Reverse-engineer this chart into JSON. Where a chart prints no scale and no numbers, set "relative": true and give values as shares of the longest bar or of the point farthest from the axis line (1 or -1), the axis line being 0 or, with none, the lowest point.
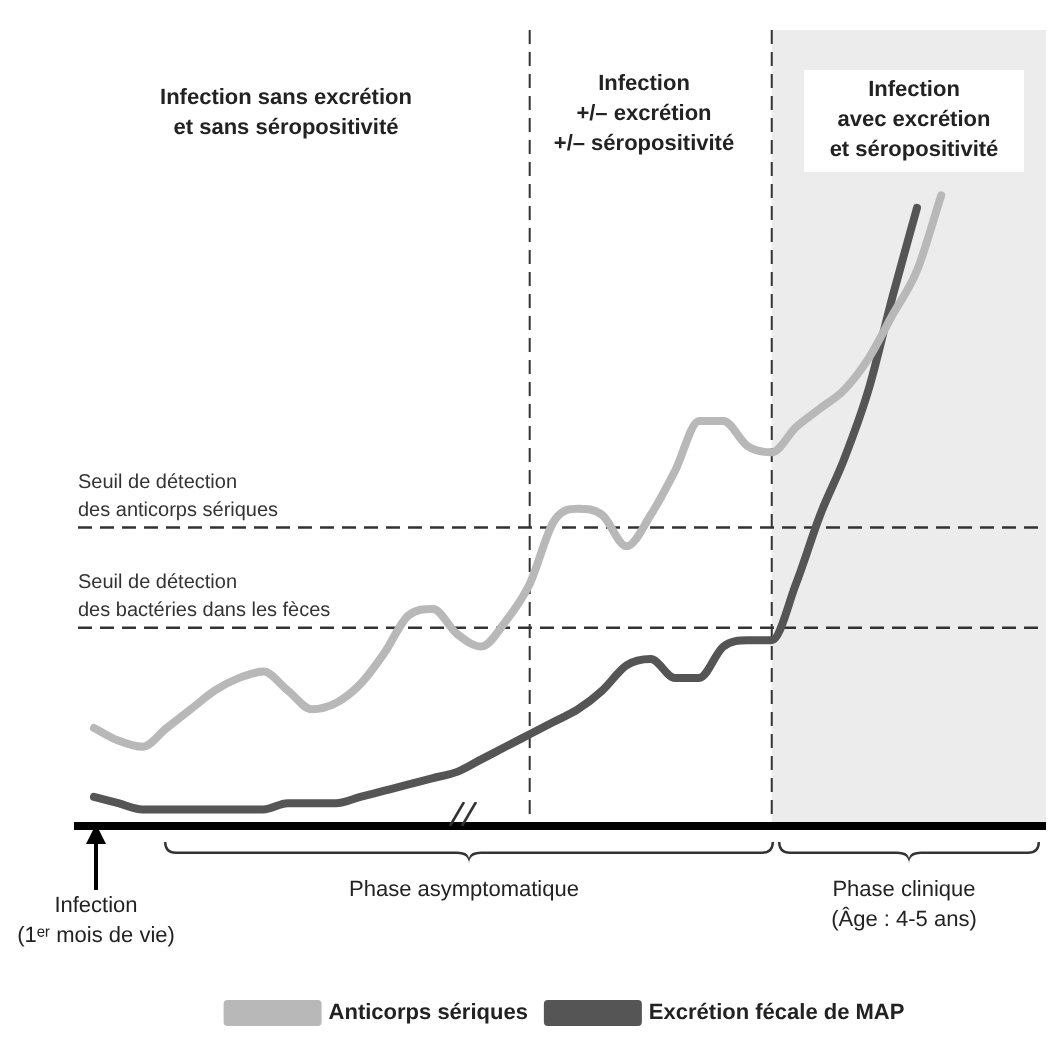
{
  "chart_data": {
    "type": "line",
    "relative": true,
    "legend": "bottom",
    "grid": false,
    "categories": [
      null,
      null,
      null,
      null,
      null,
      null,
      null,
      null,
      null,
      null,
      null,
      null,
      null,
      null,
      null,
      null,
      null,
      null,
      null,
      null,
      null,
      null,
      null,
      null,
      null,
      null,
      null,
      null,
      null,
      null,
      null,
      null,
      null,
      null,
      null,
      null,
      null,
      null,
      null,
      null
    ],
    "series": [
      {
        "name": "Anticorps sériques",
        "color": "#b8b8b8",
        "values": [
          0.15,
          0.13,
          0.12,
          0.15,
          0.18,
          0.21,
          0.23,
          0.24,
          0.21,
          0.18,
          0.19,
          0.22,
          0.27,
          0.33,
          0.34,
          0.3,
          0.28,
          0.32,
          0.38,
          0.48,
          0.5,
          0.49,
          0.44,
          0.49,
          0.56,
          0.64,
          0.64,
          0.6,
          0.59,
          0.63,
          0.66,
          0.69,
          0.74,
          0.81,
          0.88,
          1,
          null,
          null,
          null,
          null
        ]
      },
      {
        "name": "Excrétion fécale de MAP",
        "color": "#555555",
        "values": [
          0.04,
          0.03,
          0.02,
          0.02,
          0.02,
          0.02,
          0.02,
          0.02,
          0.03,
          0.03,
          0.03,
          0.04,
          0.05,
          0.06,
          0.07,
          0.08,
          0.1,
          0.12,
          0.14,
          0.16,
          0.18,
          0.21,
          0.25,
          0.26,
          0.23,
          0.23,
          0.28,
          0.29,
          0.29,
          0.38,
          0.49,
          0.58,
          0.69,
          0.84,
          0.98,
          null,
          null,
          null,
          null,
          null
        ]
      }
    ],
    "ref_lines": [
      {
        "axis": "y",
        "value": 0.47,
        "label": "Seuil de détection\ndes anticorps sériques",
        "line_style": "dashed",
        "color": "#333333"
      },
      {
        "axis": "y",
        "value": 0.31,
        "label": "Seuil de détection\ndes bactéries dans les fèces",
        "line_style": "dashed",
        "color": "#333333"
      }
    ],
    "annotations": [
      "Infection sans excrétion\net sans séropositivité",
      "Infection\n+/– excrétion\n+/– séropositivité",
      "Infection\navec excrétion\net séropositivité",
      "Phase asymptomatique",
      "Phase clinique\n(Âge : 4-5 ans)",
      "Infection\n(1ᵉʳ mois de vie)"
    ]
  }
}
